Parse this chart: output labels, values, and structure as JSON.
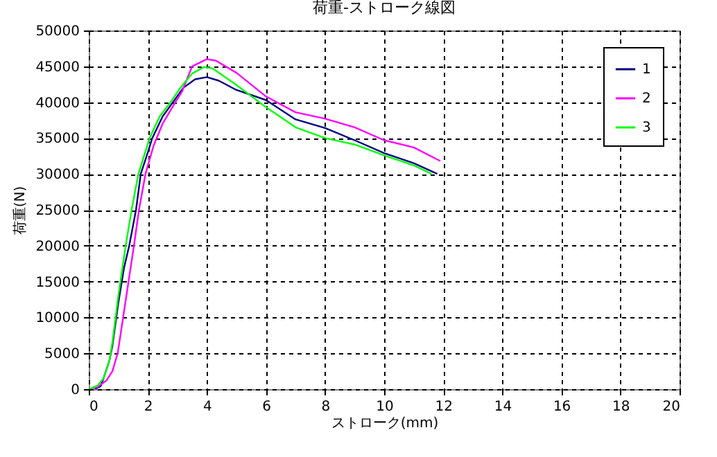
{
  "chart_data": {
    "type": "line",
    "title": "荷重-ストローク線図",
    "xlabel": "ストローク(mm)",
    "ylabel": "荷重(N)",
    "xlim": [
      0,
      20
    ],
    "xticks": [
      0,
      2,
      4,
      6,
      8,
      10,
      12,
      14,
      16,
      18,
      20
    ],
    "ylim": [
      0,
      50000
    ],
    "yticks": [
      0,
      5000,
      10000,
      15000,
      20000,
      25000,
      30000,
      35000,
      40000,
      45000,
      50000
    ],
    "grid": true,
    "legend": "top right",
    "series": [
      {
        "name": "1",
        "color": "#000080",
        "x": [
          0.2,
          0.4,
          0.5,
          0.7,
          0.8,
          1.0,
          1.2,
          1.37,
          1.6,
          1.76,
          2.0,
          2.15,
          2.5,
          2.85,
          3.2,
          3.6,
          4.0,
          4.4,
          5,
          6,
          7,
          8,
          9,
          10,
          11,
          11.8
        ],
        "values": [
          0,
          400,
          1500,
          4000,
          6000,
          12000,
          17000,
          20000,
          25000,
          30000,
          33000,
          35000,
          38000,
          40000,
          42000,
          43200,
          43500,
          43000,
          41700,
          40300,
          37600,
          36400,
          34700,
          32900,
          31500,
          30000
        ]
      },
      {
        "name": "2",
        "color": "#ff00ff",
        "x": [
          0,
          0.3,
          0.6,
          0.8,
          0.98,
          1.2,
          1.53,
          1.7,
          1.92,
          2.2,
          2.5,
          2.93,
          3.16,
          3.5,
          4.0,
          4.3,
          5,
          6,
          7,
          8,
          9,
          10,
          11,
          11.9
        ],
        "values": [
          0,
          300,
          1200,
          2500,
          5000,
          11000,
          20000,
          25000,
          30000,
          34000,
          37000,
          40000,
          41500,
          45000,
          46000,
          45800,
          44100,
          40800,
          38600,
          37700,
          36500,
          34700,
          33700,
          31800
        ]
      },
      {
        "name": "3",
        "color": "#00ff00",
        "x": [
          0,
          0.3,
          0.5,
          0.7,
          0.8,
          1.0,
          1.25,
          1.45,
          1.68,
          2.06,
          2.4,
          2.77,
          3.1,
          3.5,
          3.9,
          4.2,
          5,
          6,
          7,
          8,
          9,
          10,
          11,
          11.6
        ],
        "values": [
          0,
          500,
          1500,
          4000,
          6500,
          13000,
          20000,
          25000,
          30000,
          35000,
          38000,
          40000,
          42000,
          44000,
          44900,
          44700,
          42400,
          39300,
          36500,
          35000,
          34100,
          32600,
          31200,
          30000
        ]
      }
    ]
  }
}
